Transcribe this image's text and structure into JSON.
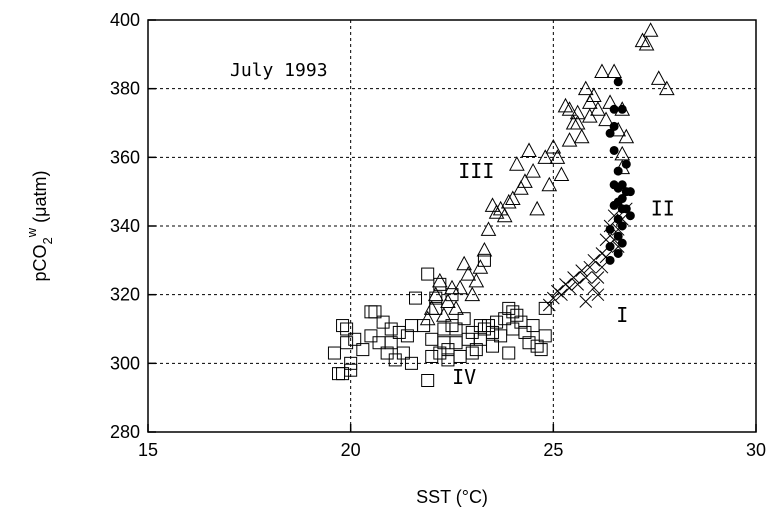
{
  "chart_data": {
    "type": "scatter",
    "title": "July 1993",
    "xlabel": "SST (°C)",
    "ylabel": "pCO2w (μatm)",
    "ylabel_parts": {
      "base": "pCO",
      "sub": "2",
      "sup": "w",
      "unit": " (μatm)"
    },
    "xlim": [
      15,
      30
    ],
    "ylim": [
      280,
      400
    ],
    "xticks": [
      15,
      20,
      25,
      30
    ],
    "yticks": [
      280,
      300,
      320,
      340,
      360,
      380,
      400
    ],
    "grid": true,
    "annotations": [
      {
        "text": "I",
        "x": 26.7,
        "y": 312
      },
      {
        "text": "II",
        "x": 27.7,
        "y": 343
      },
      {
        "text": "III",
        "x": 23.1,
        "y": 354
      },
      {
        "text": "IV",
        "x": 22.8,
        "y": 294
      }
    ],
    "series": [
      {
        "marker": "square",
        "values": [
          [
            19.6,
            303
          ],
          [
            19.7,
            297
          ],
          [
            19.8,
            297
          ],
          [
            19.8,
            311
          ],
          [
            19.9,
            310
          ],
          [
            19.9,
            306
          ],
          [
            20.0,
            300
          ],
          [
            20.0,
            298
          ],
          [
            20.1,
            307
          ],
          [
            20.3,
            304
          ],
          [
            20.5,
            308
          ],
          [
            20.5,
            315
          ],
          [
            20.6,
            315
          ],
          [
            20.7,
            306
          ],
          [
            20.8,
            312
          ],
          [
            20.9,
            303
          ],
          [
            21.0,
            310
          ],
          [
            21.0,
            306
          ],
          [
            21.1,
            301
          ],
          [
            21.2,
            309
          ],
          [
            21.3,
            303
          ],
          [
            21.4,
            308
          ],
          [
            21.5,
            300
          ],
          [
            21.5,
            311
          ],
          [
            21.6,
            319
          ],
          [
            21.8,
            311
          ],
          [
            21.9,
            326
          ],
          [
            21.9,
            295
          ],
          [
            22.0,
            302
          ],
          [
            22.0,
            307
          ],
          [
            22.1,
            316
          ],
          [
            22.1,
            319
          ],
          [
            22.2,
            323
          ],
          [
            22.2,
            303
          ],
          [
            22.3,
            306
          ],
          [
            22.3,
            310
          ],
          [
            22.4,
            301
          ],
          [
            22.4,
            304
          ],
          [
            22.5,
            311
          ],
          [
            22.5,
            320
          ],
          [
            22.6,
            306
          ],
          [
            22.6,
            310
          ],
          [
            22.7,
            302
          ],
          [
            22.8,
            313
          ],
          [
            22.9,
            307
          ],
          [
            23.0,
            303
          ],
          [
            23.0,
            309
          ],
          [
            23.1,
            304
          ],
          [
            23.2,
            307
          ],
          [
            23.2,
            311
          ],
          [
            23.3,
            310
          ],
          [
            23.3,
            330
          ],
          [
            23.4,
            311
          ],
          [
            23.5,
            305
          ],
          [
            23.5,
            309
          ],
          [
            23.6,
            312
          ],
          [
            23.7,
            308
          ],
          [
            23.8,
            313
          ],
          [
            23.9,
            316
          ],
          [
            23.9,
            303
          ],
          [
            24.0,
            315
          ],
          [
            24.0,
            310
          ],
          [
            24.1,
            314
          ],
          [
            24.2,
            312
          ],
          [
            24.3,
            309
          ],
          [
            24.4,
            306
          ],
          [
            24.5,
            311
          ],
          [
            24.6,
            305
          ],
          [
            24.7,
            304
          ],
          [
            24.8,
            308
          ],
          [
            24.8,
            316
          ]
        ]
      },
      {
        "marker": "triangle",
        "values": [
          [
            21.9,
            313
          ],
          [
            22.0,
            316
          ],
          [
            22.1,
            320
          ],
          [
            22.2,
            324
          ],
          [
            22.3,
            314
          ],
          [
            22.4,
            318
          ],
          [
            22.5,
            322
          ],
          [
            22.6,
            316
          ],
          [
            22.7,
            322
          ],
          [
            22.8,
            329
          ],
          [
            22.9,
            326
          ],
          [
            23.0,
            320
          ],
          [
            23.1,
            324
          ],
          [
            23.2,
            328
          ],
          [
            23.3,
            333
          ],
          [
            23.4,
            339
          ],
          [
            23.5,
            346
          ],
          [
            23.6,
            344
          ],
          [
            23.7,
            345
          ],
          [
            23.8,
            343
          ],
          [
            23.9,
            347
          ],
          [
            24.0,
            348
          ],
          [
            24.1,
            358
          ],
          [
            24.2,
            351
          ],
          [
            24.3,
            353
          ],
          [
            24.4,
            362
          ],
          [
            24.5,
            356
          ],
          [
            24.6,
            345
          ],
          [
            24.8,
            360
          ],
          [
            24.9,
            352
          ],
          [
            25.0,
            363
          ],
          [
            25.1,
            360
          ],
          [
            25.2,
            355
          ],
          [
            25.3,
            375
          ],
          [
            25.4,
            365
          ],
          [
            25.5,
            370
          ],
          [
            25.6,
            373
          ],
          [
            25.7,
            366
          ],
          [
            25.8,
            380
          ],
          [
            25.9,
            372
          ],
          [
            26.0,
            378
          ],
          [
            26.1,
            374
          ],
          [
            26.2,
            385
          ],
          [
            26.3,
            371
          ],
          [
            26.4,
            376
          ],
          [
            26.5,
            385
          ],
          [
            26.6,
            368
          ],
          [
            26.7,
            374
          ],
          [
            26.7,
            361
          ],
          [
            26.7,
            357
          ],
          [
            26.8,
            366
          ],
          [
            27.2,
            394
          ],
          [
            27.3,
            393
          ],
          [
            27.4,
            397
          ],
          [
            27.6,
            383
          ],
          [
            27.8,
            380
          ],
          [
            25.4,
            374
          ],
          [
            25.6,
            370
          ],
          [
            25.9,
            376
          ]
        ]
      },
      {
        "marker": "cross",
        "values": [
          [
            24.9,
            317
          ],
          [
            25.0,
            319
          ],
          [
            25.1,
            321
          ],
          [
            25.2,
            320
          ],
          [
            25.3,
            323
          ],
          [
            25.4,
            322
          ],
          [
            25.5,
            325
          ],
          [
            25.6,
            323
          ],
          [
            25.7,
            327
          ],
          [
            25.8,
            318
          ],
          [
            25.8,
            325
          ],
          [
            25.9,
            328
          ],
          [
            26.0,
            322
          ],
          [
            26.0,
            330
          ],
          [
            26.1,
            325
          ],
          [
            26.1,
            320
          ],
          [
            26.2,
            328
          ],
          [
            26.2,
            332
          ],
          [
            26.3,
            336
          ],
          [
            26.3,
            331
          ],
          [
            26.4,
            340
          ],
          [
            26.5,
            336
          ],
          [
            26.5,
            343
          ],
          [
            26.6,
            334
          ],
          [
            26.6,
            339
          ],
          [
            26.7,
            342
          ],
          [
            26.8,
            345
          ]
        ]
      },
      {
        "marker": "circle",
        "values": [
          [
            26.4,
            367
          ],
          [
            26.5,
            374
          ],
          [
            26.5,
            369
          ],
          [
            26.6,
            382
          ],
          [
            26.6,
            356
          ],
          [
            26.6,
            351
          ],
          [
            26.6,
            347
          ],
          [
            26.6,
            342
          ],
          [
            26.6,
            337
          ],
          [
            26.6,
            332
          ],
          [
            26.7,
            374
          ],
          [
            26.7,
            352
          ],
          [
            26.7,
            348
          ],
          [
            26.7,
            345
          ],
          [
            26.7,
            340
          ],
          [
            26.7,
            335
          ],
          [
            26.8,
            358
          ],
          [
            26.8,
            350
          ],
          [
            26.8,
            345
          ],
          [
            26.9,
            350
          ],
          [
            26.9,
            343
          ],
          [
            26.5,
            362
          ],
          [
            26.5,
            352
          ],
          [
            26.5,
            346
          ],
          [
            26.4,
            339
          ],
          [
            26.4,
            334
          ],
          [
            26.4,
            330
          ]
        ]
      }
    ]
  }
}
